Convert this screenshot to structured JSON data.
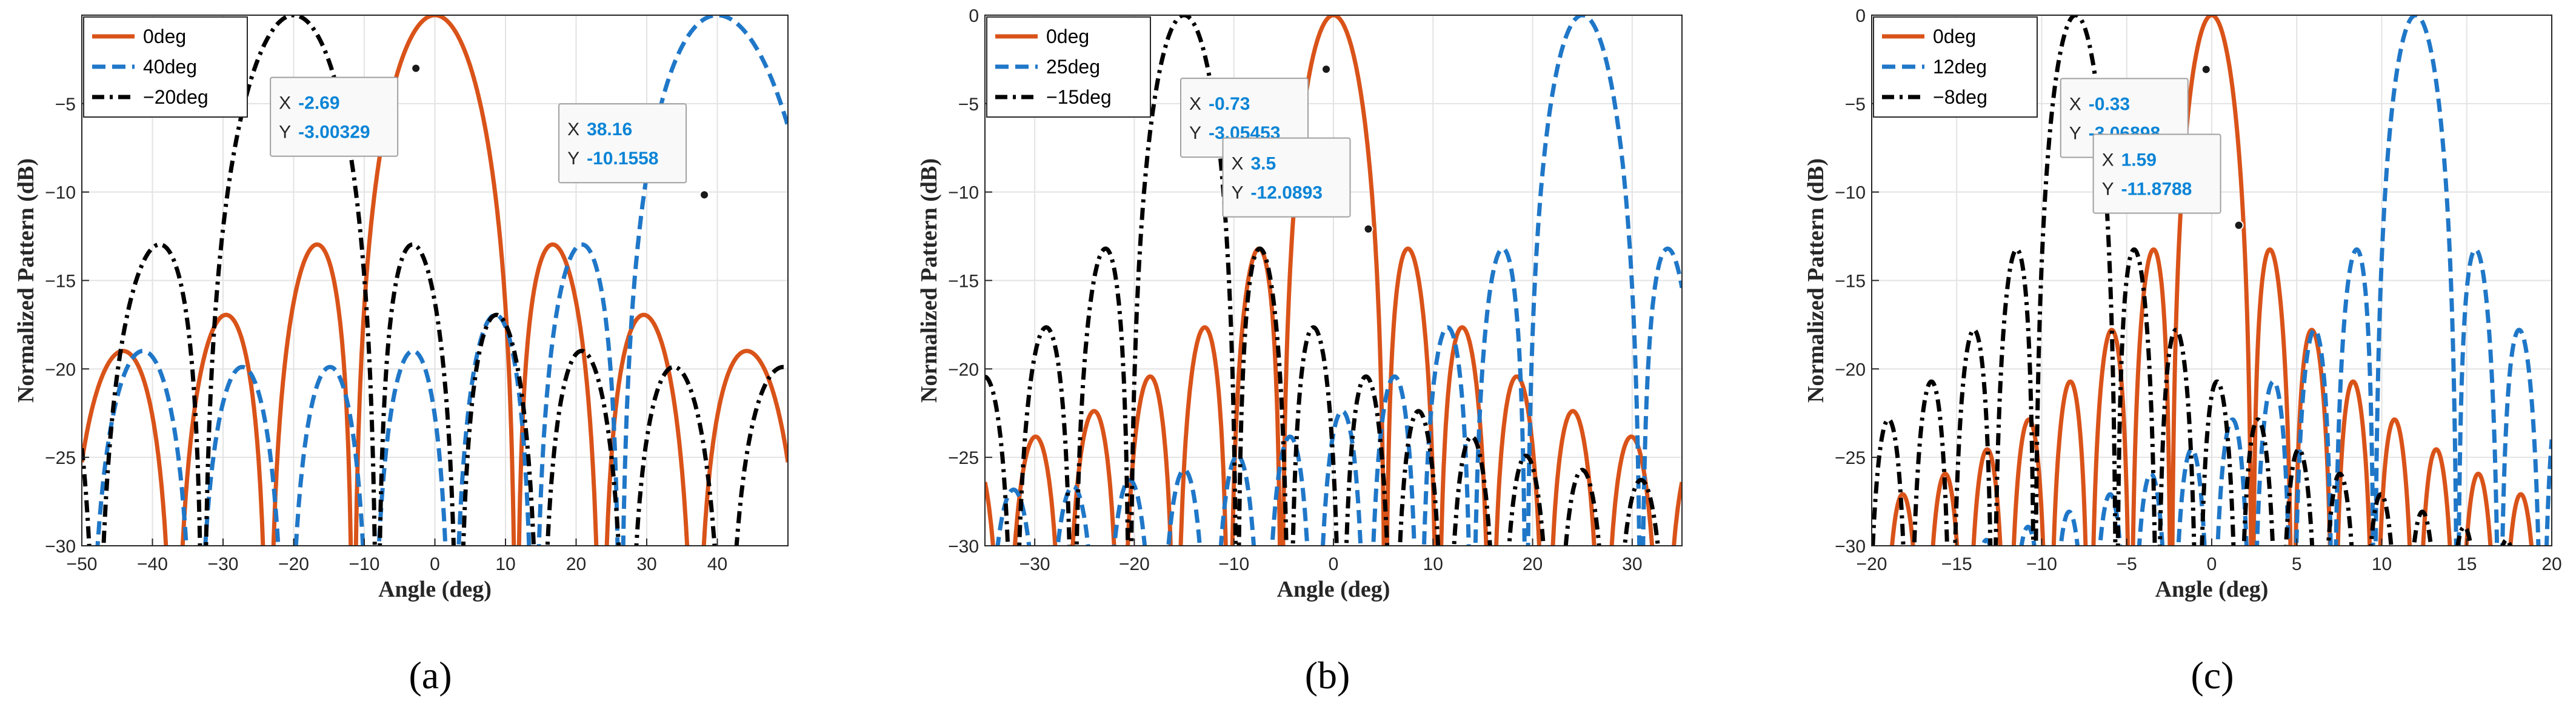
{
  "chart_data": [
    {
      "type": "line",
      "panel_label": "(a)",
      "xlabel": "Angle (deg)",
      "ylabel": "Normalized Pattern (dB)",
      "xlim": [
        -50,
        50
      ],
      "ylim": [
        -30,
        0
      ],
      "xticks": [
        -50,
        -40,
        -30,
        -20,
        -10,
        0,
        10,
        20,
        30,
        40
      ],
      "yticks": [
        -30,
        -25,
        -20,
        -15,
        -10,
        -5
      ],
      "grid": true,
      "legend_position": "top-left",
      "series": [
        {
          "name": "0deg",
          "steer": 0,
          "color": "#d95319",
          "style": "solid"
        },
        {
          "name": "40deg",
          "steer": 40,
          "color": "#1f77c8",
          "style": "dashed"
        },
        {
          "name": "−20deg",
          "steer": -20,
          "color": "#000000",
          "style": "dashdot"
        }
      ],
      "elements": 10,
      "datatips": [
        {
          "series": "0deg",
          "x_label": "X",
          "y_label": "Y",
          "x_value": "-2.69",
          "y_value": "-3.00329",
          "x": -2.69,
          "y": -3.00329
        },
        {
          "series": "40deg",
          "x_label": "X",
          "y_label": "Y",
          "x_value": "38.16",
          "y_value": "-10.1558",
          "x": 38.16,
          "y": -10.1558
        }
      ]
    },
    {
      "type": "line",
      "panel_label": "(b)",
      "xlabel": "Angle (deg)",
      "ylabel": "Normalized Pattern (dB)",
      "xlim": [
        -35,
        35
      ],
      "ylim": [
        -30,
        0
      ],
      "xticks": [
        -30,
        -20,
        -10,
        0,
        10,
        20,
        30
      ],
      "yticks": [
        -30,
        -25,
        -20,
        -15,
        -10,
        -5,
        0
      ],
      "grid": true,
      "legend_position": "top-left",
      "series": [
        {
          "name": "0deg",
          "steer": 0,
          "color": "#d95319",
          "style": "solid"
        },
        {
          "name": "25deg",
          "steer": 25,
          "color": "#1f77c8",
          "style": "dashed"
        },
        {
          "name": "−15deg",
          "steer": -15,
          "color": "#000000",
          "style": "dashdot"
        }
      ],
      "elements": 22,
      "datatips": [
        {
          "series": "0deg",
          "x_label": "X",
          "y_label": "Y",
          "x_value": "-0.73",
          "y_value": "-3.05453",
          "x": -0.73,
          "y": -3.05453
        },
        {
          "series": "0deg",
          "x_label": "X",
          "y_label": "Y",
          "x_value": "3.5",
          "y_value": "-12.0893",
          "x": 3.5,
          "y": -12.0893
        }
      ]
    },
    {
      "type": "line",
      "panel_label": "(c)",
      "xlabel": "Angle (deg)",
      "ylabel": "Normalized Pattern (dB)",
      "xlim": [
        -20,
        20
      ],
      "ylim": [
        -30,
        0
      ],
      "xticks": [
        -20,
        -15,
        -10,
        -5,
        0,
        5,
        10,
        15,
        20
      ],
      "yticks": [
        -30,
        -25,
        -20,
        -15,
        -10,
        -5,
        0
      ],
      "grid": true,
      "legend_position": "top-left",
      "series": [
        {
          "name": "0deg",
          "steer": 0,
          "color": "#d95319",
          "style": "solid"
        },
        {
          "name": "12deg",
          "steer": 12,
          "color": "#1f77c8",
          "style": "dashed"
        },
        {
          "name": "−8deg",
          "steer": -8,
          "color": "#000000",
          "style": "dashdot"
        }
      ],
      "elements": 48,
      "datatips": [
        {
          "series": "0deg",
          "x_label": "X",
          "y_label": "Y",
          "x_value": "-0.33",
          "y_value": "-3.06898",
          "x": -0.33,
          "y": -3.06898
        },
        {
          "series": "0deg",
          "x_label": "X",
          "y_label": "Y",
          "x_value": "1.59",
          "y_value": "-11.8788",
          "x": 1.59,
          "y": -11.8788
        }
      ]
    }
  ]
}
